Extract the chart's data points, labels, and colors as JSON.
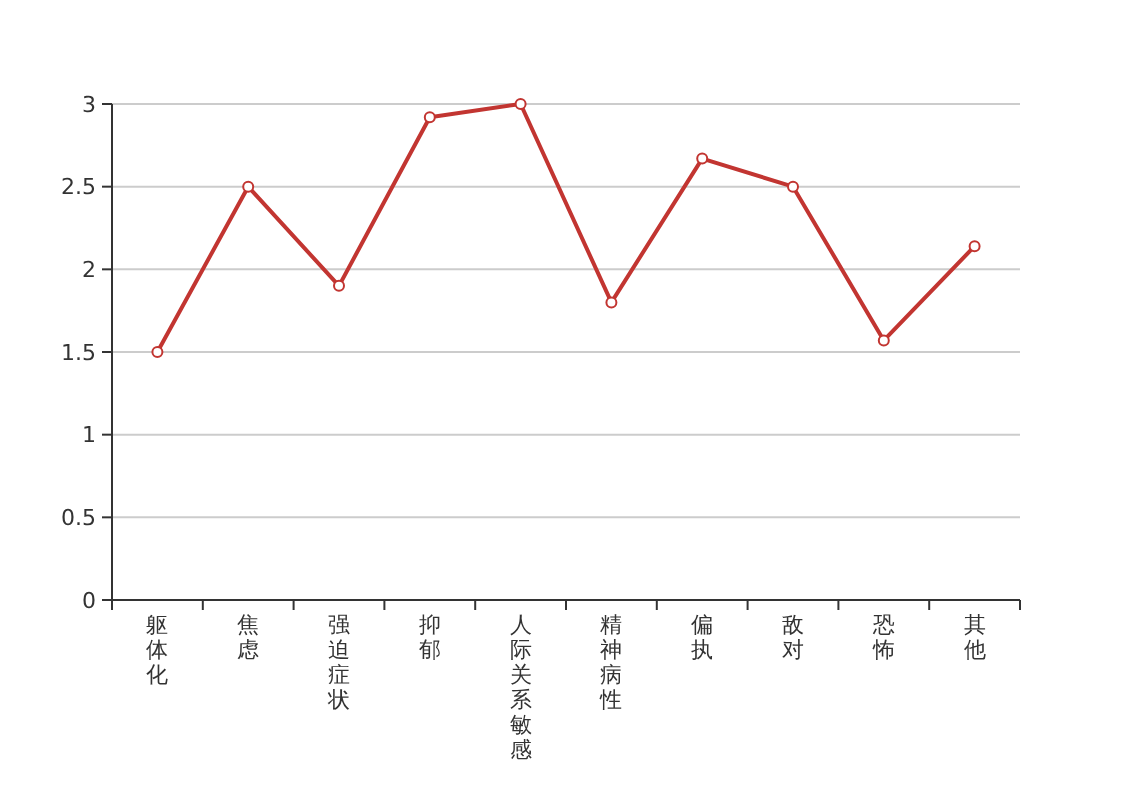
{
  "chart_data": {
    "type": "line",
    "categories": [
      "躯体化",
      "焦虑",
      "强迫症状",
      "抑郁",
      "人际关系敏感",
      "精神病性",
      "偏执",
      "敌对",
      "恐怖",
      "其他"
    ],
    "series": [
      {
        "color": "#c23531",
        "values": [
          1.5,
          2.5,
          1.9,
          2.92,
          3.0,
          1.8,
          2.67,
          2.5,
          1.57,
          2.14
        ]
      }
    ],
    "ylim": [
      0,
      3
    ],
    "yticks": [
      0,
      0.5,
      1,
      1.5,
      2,
      2.5,
      3
    ],
    "grid": "y",
    "marker": "circle",
    "line_style": "solid"
  }
}
